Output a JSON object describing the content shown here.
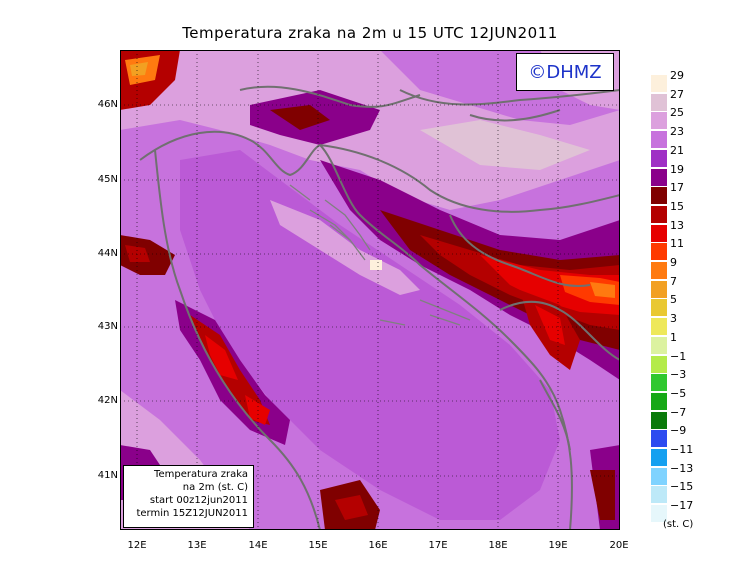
{
  "title": "Temperatura zraka na 2m u 15 UTC 12JUN2011",
  "logo_text": "©DHMZ",
  "info_box": {
    "line1": "Temperatura zraka",
    "line2": "na 2m (st. C)",
    "line3": "start 00z12jun2011",
    "line4": "termin 15Z12JUN2011"
  },
  "lat_labels": [
    "46N",
    "45N",
    "44N",
    "43N",
    "42N",
    "41N"
  ],
  "lon_labels": [
    "12E",
    "13E",
    "14E",
    "15E",
    "16E",
    "17E",
    "18E",
    "19E",
    "20E"
  ],
  "legend": {
    "unit": "(st. C)",
    "labels": [
      "29",
      "27",
      "25",
      "23",
      "21",
      "19",
      "17",
      "15",
      "13",
      "11",
      "9",
      "7",
      "5",
      "3",
      "1",
      "−1",
      "−3",
      "−5",
      "−7",
      "−9",
      "−11",
      "−13",
      "−15",
      "−17"
    ],
    "colors": [
      "#fdf0dc",
      "#e0c2d6",
      "#dca0de",
      "#c772dd",
      "#9f2fc5",
      "#8a008a",
      "#800000",
      "#b40000",
      "#e60000",
      "#ff3a00",
      "#ff7a10",
      "#f2a022",
      "#e9c832",
      "#eee85a",
      "#dcf2a0",
      "#b4eb4a",
      "#2fc82f",
      "#16a816",
      "#0a7a0a",
      "#2d4bf0",
      "#15a0f0",
      "#7fd3ff",
      "#bde9f8",
      "#e6f7fb"
    ]
  }
}
